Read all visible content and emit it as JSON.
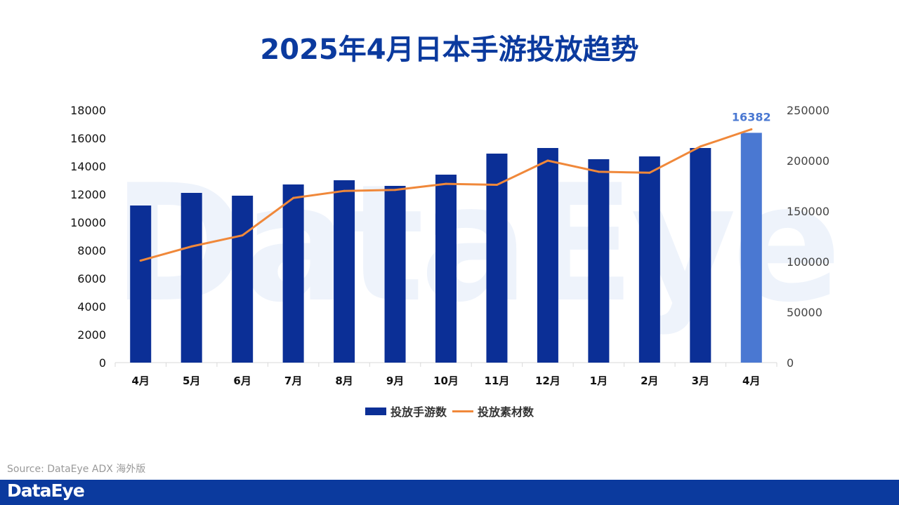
{
  "title": "2025年4月日本手游投放趋势",
  "watermark": "DataEye",
  "source": "Source: DataEye ADX 海外版",
  "footer_brand": "DataEye",
  "colors": {
    "bar": "#0b2f96",
    "bar_highlight": "#4a78d2",
    "line": "#f0883a",
    "title": "#0b3a9e",
    "footer": "#0b3a9e"
  },
  "chart_data": {
    "type": "bar",
    "title": "2025年4月日本手游投放趋势",
    "categories": [
      "4月",
      "5月",
      "6月",
      "7月",
      "8月",
      "9月",
      "10月",
      "11月",
      "12月",
      "1月",
      "2月",
      "3月",
      "4月"
    ],
    "series": [
      {
        "name": "投放手游数",
        "type": "bar",
        "axis": "left",
        "values": [
          11200,
          12100,
          11900,
          12700,
          13000,
          12600,
          13400,
          14900,
          15300,
          14500,
          14700,
          15300,
          16382
        ]
      },
      {
        "name": "投放素材数",
        "type": "line",
        "axis": "right",
        "values": [
          101000,
          115000,
          126000,
          163000,
          170000,
          171000,
          177000,
          176000,
          200000,
          189000,
          188000,
          214000,
          231000
        ]
      }
    ],
    "ylim_left": [
      0,
      18000
    ],
    "yticks_left": [
      0,
      2000,
      4000,
      6000,
      8000,
      10000,
      12000,
      14000,
      16000,
      18000
    ],
    "ylim_right": [
      0,
      250000
    ],
    "yticks_right": [
      0,
      50000,
      100000,
      150000,
      200000,
      250000
    ],
    "highlight_index": 12,
    "data_labels": [
      {
        "index": 12,
        "text": "16382"
      }
    ],
    "grid": false,
    "legend_position": "bottom"
  }
}
